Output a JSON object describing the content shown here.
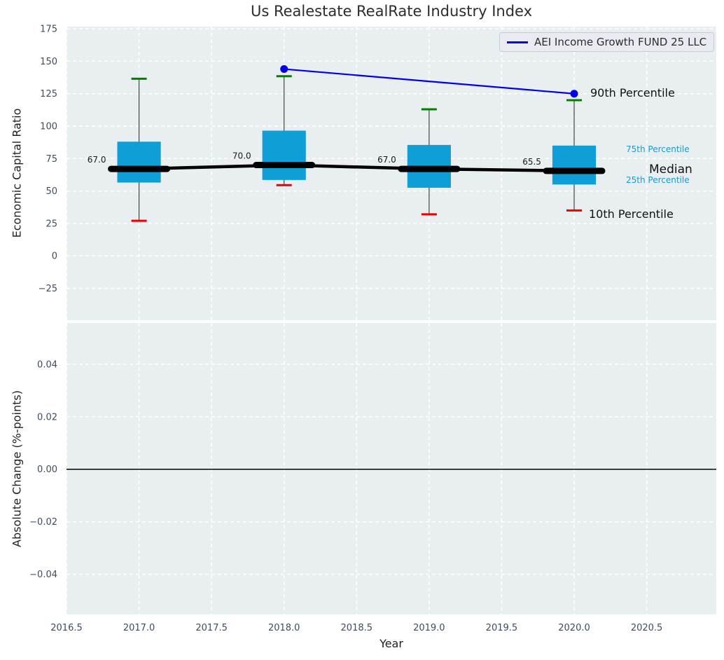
{
  "title": "Us Realestate RealRate Industry Index",
  "legend": {
    "series_label": "AEI Income Growth FUND 25 LLC"
  },
  "annotations": {
    "p90": "90th Percentile",
    "p75": "75th Percentile",
    "median": "Median",
    "p25": "25th Percentile",
    "p10": "10th Percentile"
  },
  "colors": {
    "panel_bg": "#e9eef0",
    "grid": "#ffffff",
    "box_fill": "#0f9ed5",
    "whisker": "#444444",
    "cap_top": "#008000",
    "cap_bottom": "#ef0000",
    "median_line": "#000000",
    "series_line": "#0000ee",
    "zero_line": "#000000",
    "tick_label": "#3b4d63",
    "value_label": "#1a1a1a"
  },
  "chart_data": [
    {
      "type": "box",
      "panel": "top",
      "title": "Us Realestate RealRate Industry Index",
      "ylabel": "Economic Capital Ratio",
      "ylim": [
        -49.6,
        176.7
      ],
      "xlim": [
        2016.5,
        2020.98
      ],
      "grid": "dashed-white",
      "yticks": [
        {
          "v": 175,
          "label": "175"
        },
        {
          "v": 150,
          "label": "150"
        },
        {
          "v": 125,
          "label": "125"
        },
        {
          "v": 100,
          "label": "100"
        },
        {
          "v": 75,
          "label": "75"
        },
        {
          "v": 50,
          "label": "50"
        },
        {
          "v": 25,
          "label": "25"
        },
        {
          "v": 0,
          "label": "0"
        },
        {
          "v": -25,
          "label": "−25"
        }
      ],
      "xticks": [
        {
          "v": 2016.5,
          "label": "2016.5"
        },
        {
          "v": 2017.0,
          "label": "2017.0"
        },
        {
          "v": 2017.5,
          "label": "2017.5"
        },
        {
          "v": 2018.0,
          "label": "2018.0"
        },
        {
          "v": 2018.5,
          "label": "2018.5"
        },
        {
          "v": 2019.0,
          "label": "2019.0"
        },
        {
          "v": 2019.5,
          "label": "2019.5"
        },
        {
          "v": 2020.0,
          "label": "2020.0"
        },
        {
          "v": 2020.5,
          "label": "2020.5"
        }
      ],
      "show_x_tick_labels": false,
      "box_width_years": 0.3,
      "boxes": [
        {
          "x": 2017,
          "p10": 27,
          "p25": 56.5,
          "median": 67.0,
          "p75": 88,
          "p90": 136.5,
          "label": "67.0"
        },
        {
          "x": 2018,
          "p10": 54.5,
          "p25": 58.5,
          "median": 70.0,
          "p75": 96.5,
          "p90": 138.5,
          "label": "70.0"
        },
        {
          "x": 2019,
          "p10": 32,
          "p25": 52.5,
          "median": 67.0,
          "p75": 85.5,
          "p90": 113,
          "label": "67.0"
        },
        {
          "x": 2020,
          "p10": 35,
          "p25": 55,
          "median": 65.5,
          "p75": 85,
          "p90": 120,
          "label": "65.5"
        }
      ],
      "series": [
        {
          "name": "AEI Income Growth FUND 25 LLC",
          "points": [
            {
              "x": 2018,
              "y": 144
            },
            {
              "x": 2020,
              "y": 125
            }
          ]
        }
      ]
    },
    {
      "type": "line",
      "panel": "bottom",
      "xlabel": "Year",
      "ylabel": "Absolute Change (%-points)",
      "ylim": [
        -0.0553,
        0.0557
      ],
      "xlim": [
        2016.5,
        2020.98
      ],
      "grid": "dashed-white",
      "yticks": [
        {
          "v": 0.04,
          "label": "0.04"
        },
        {
          "v": 0.02,
          "label": "0.02"
        },
        {
          "v": 0,
          "label": "0.00"
        },
        {
          "v": -0.02,
          "label": "−0.02"
        },
        {
          "v": -0.04,
          "label": "−0.04"
        }
      ],
      "xticks": [
        {
          "v": 2016.5,
          "label": "2016.5"
        },
        {
          "v": 2017.0,
          "label": "2017.0"
        },
        {
          "v": 2017.5,
          "label": "2017.5"
        },
        {
          "v": 2018.0,
          "label": "2018.0"
        },
        {
          "v": 2018.5,
          "label": "2018.5"
        },
        {
          "v": 2019.0,
          "label": "2019.0"
        },
        {
          "v": 2019.5,
          "label": "2019.5"
        },
        {
          "v": 2020.0,
          "label": "2020.0"
        },
        {
          "v": 2020.5,
          "label": "2020.5"
        }
      ],
      "show_x_tick_labels": true,
      "zero_line": 0,
      "series": []
    }
  ]
}
